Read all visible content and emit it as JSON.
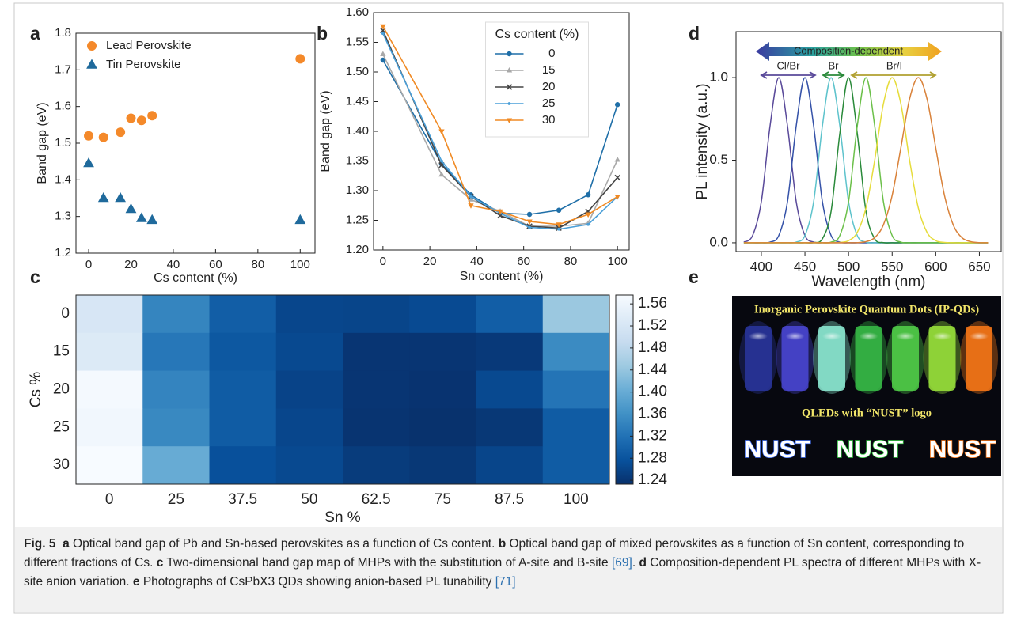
{
  "chart_data": [
    {
      "type": "scatter",
      "panel": "a",
      "xlabel": "Cs content (%)",
      "ylabel": "Band gap (eV)",
      "x": [
        0,
        7,
        15,
        20,
        25,
        30,
        100
      ],
      "series": [
        {
          "name": "Lead Perovskite",
          "color": "#f4892a",
          "marker": "circle",
          "values": [
            1.52,
            1.516,
            1.53,
            1.568,
            1.562,
            1.575,
            1.73
          ]
        },
        {
          "name": "Tin Perovskite",
          "color": "#1f6a9c",
          "marker": "triangle",
          "values": [
            1.445,
            1.35,
            1.35,
            1.32,
            1.295,
            1.29,
            1.29
          ]
        }
      ],
      "xlim": [
        -6,
        107
      ],
      "ylim": [
        1.2,
        1.8
      ],
      "xticks": [
        0,
        20,
        40,
        60,
        80,
        100
      ],
      "yticks": [
        1.2,
        1.3,
        1.4,
        1.5,
        1.6,
        1.7,
        1.8
      ],
      "legend": "upper left"
    },
    {
      "type": "line",
      "panel": "b",
      "xlabel": "Sn content (%)",
      "ylabel": "Band gap (eV)",
      "legend_title": "Cs content (%)",
      "x": [
        0,
        25,
        37.5,
        50,
        62.5,
        75,
        87.5,
        100
      ],
      "series": [
        {
          "name": "0",
          "color": "#1f6fa8",
          "marker": "circle",
          "values": [
            1.52,
            1.345,
            1.293,
            1.262,
            1.26,
            1.267,
            1.293,
            1.445
          ]
        },
        {
          "name": "15",
          "color": "#a9a9a9",
          "marker": "triangle",
          "values": [
            1.53,
            1.327,
            1.285,
            1.265,
            1.24,
            1.24,
            1.245,
            1.352
          ]
        },
        {
          "name": "20",
          "color": "#444444",
          "marker": "x",
          "values": [
            1.57,
            1.343,
            1.29,
            1.258,
            1.24,
            1.237,
            1.265,
            1.322
          ]
        },
        {
          "name": "25",
          "color": "#4a9fd8",
          "marker": "dot",
          "values": [
            1.565,
            1.35,
            1.29,
            1.262,
            1.238,
            1.235,
            1.243,
            1.29
          ]
        },
        {
          "name": "30",
          "color": "#f08a24",
          "marker": "triangle-down",
          "values": [
            1.577,
            1.4,
            1.275,
            1.265,
            1.248,
            1.243,
            1.26,
            1.29
          ]
        }
      ],
      "xlim": [
        -4,
        105
      ],
      "ylim": [
        1.2,
        1.6
      ],
      "xticks": [
        0,
        20,
        40,
        60,
        80,
        100
      ],
      "yticks": [
        {
          "value": 1.2,
          "label": "1.20"
        },
        1.25,
        {
          "value": 1.3,
          "label": "1.30"
        },
        1.35,
        {
          "value": 1.4,
          "label": "1.40"
        },
        1.45,
        {
          "value": 1.5,
          "label": "1.50"
        },
        1.55,
        {
          "value": 1.6,
          "label": "1.60"
        }
      ],
      "legend": "upper center"
    },
    {
      "type": "heatmap",
      "panel": "c",
      "xlabel": "Sn %",
      "ylabel": "Cs %",
      "x_categories": [
        "0",
        "25",
        "37.5",
        "50",
        "62.5",
        "75",
        "87.5",
        "100"
      ],
      "y_categories": [
        "0",
        "15",
        "20",
        "25",
        "30"
      ],
      "values": [
        [
          1.52,
          1.345,
          1.293,
          1.262,
          1.26,
          1.267,
          1.293,
          1.445
        ],
        [
          1.53,
          1.327,
          1.285,
          1.265,
          1.24,
          1.24,
          1.245,
          1.352
        ],
        [
          1.57,
          1.343,
          1.29,
          1.258,
          1.24,
          1.237,
          1.265,
          1.322
        ],
        [
          1.565,
          1.35,
          1.29,
          1.262,
          1.238,
          1.235,
          1.243,
          1.29
        ],
        [
          1.577,
          1.4,
          1.275,
          1.265,
          1.248,
          1.243,
          1.26,
          1.29
        ]
      ],
      "clim": [
        1.233,
        1.576
      ],
      "cticks": [
        1.24,
        1.28,
        1.32,
        1.36,
        {
          "value": 1.4,
          "label": "1.40"
        },
        1.44,
        1.48,
        1.52,
        1.56
      ],
      "colormap": [
        "#08306b",
        "#08519c",
        "#2171b5",
        "#4292c6",
        "#6baed6",
        "#9ecae1",
        "#c6dbef",
        "#deebf7",
        "#f7fbff"
      ]
    },
    {
      "type": "line",
      "panel": "d",
      "xlabel": "Wavelength (nm)",
      "ylabel": "PL intensity (a.u.)",
      "annotations": [
        "Composition-dependent",
        "Cl/Br",
        "Br",
        "Br/I"
      ],
      "x": [
        380,
        390,
        400,
        410,
        420,
        430,
        440,
        450,
        460,
        470,
        480,
        490,
        500,
        510,
        520,
        530,
        540,
        550,
        560,
        570,
        580,
        590,
        600,
        610,
        620,
        630,
        640,
        650,
        660
      ],
      "series": [
        {
          "color": "#5a4a9a",
          "values": [
            0.004,
            0.044,
            0.249,
            0.707,
            1,
            0.707,
            0.249,
            0.044,
            0.004,
            0,
            0,
            0,
            0,
            0,
            0,
            0,
            0,
            0,
            0,
            0,
            0,
            0,
            0,
            0,
            0,
            0,
            0,
            0,
            0
          ]
        },
        {
          "color": "#3552a8",
          "values": [
            0,
            0,
            0,
            0.004,
            0.044,
            0.249,
            0.707,
            1,
            0.707,
            0.249,
            0.044,
            0.004,
            0,
            0,
            0,
            0,
            0,
            0,
            0,
            0,
            0,
            0,
            0,
            0,
            0,
            0,
            0,
            0,
            0
          ]
        },
        {
          "color": "#5ec3cc",
          "values": [
            0,
            0,
            0,
            0,
            0,
            0,
            0.004,
            0.044,
            0.249,
            0.707,
            1,
            0.707,
            0.249,
            0.044,
            0.004,
            0,
            0,
            0,
            0,
            0,
            0,
            0,
            0,
            0,
            0,
            0,
            0,
            0,
            0
          ]
        },
        {
          "color": "#2a8a3a",
          "values": [
            0,
            0,
            0,
            0,
            0,
            0,
            0,
            0,
            0.001,
            0.024,
            0.191,
            0.662,
            1,
            0.662,
            0.191,
            0.024,
            0.001,
            0,
            0,
            0,
            0,
            0,
            0,
            0,
            0,
            0,
            0,
            0,
            0
          ]
        },
        {
          "color": "#6cc04a",
          "values": [
            0,
            0,
            0,
            0,
            0,
            0,
            0,
            0,
            0,
            0,
            0.004,
            0.044,
            0.249,
            0.707,
            1,
            0.707,
            0.249,
            0.044,
            0.004,
            0,
            0,
            0,
            0,
            0,
            0,
            0,
            0,
            0,
            0
          ]
        },
        {
          "color": "#e6dc3c",
          "values": [
            0,
            0,
            0,
            0,
            0,
            0,
            0,
            0,
            0,
            0,
            0,
            0.002,
            0.013,
            0.063,
            0.211,
            0.5,
            0.841,
            1,
            0.841,
            0.5,
            0.211,
            0.063,
            0.013,
            0.002,
            0,
            0,
            0,
            0,
            0
          ]
        },
        {
          "color": "#d9823a",
          "values": [
            0,
            0,
            0,
            0,
            0,
            0,
            0,
            0,
            0,
            0,
            0,
            0,
            0,
            0.001,
            0.007,
            0.031,
            0.109,
            0.287,
            0.575,
            0.871,
            1,
            0.871,
            0.575,
            0.287,
            0.109,
            0.031,
            0.007,
            0.001,
            0
          ]
        }
      ],
      "xlim": [
        371,
        675
      ],
      "ylim": [
        -0.053,
        1.278
      ],
      "xticks": [
        400,
        450,
        500,
        550,
        600,
        650
      ],
      "yticks": [
        {
          "value": 0,
          "label": "0.0"
        },
        0.5,
        {
          "value": 1,
          "label": "1.0"
        }
      ]
    }
  ],
  "photo": {
    "panel": "e",
    "title": "Inorganic Perovskite Quantum Dots (IP-QDs)",
    "subtitle": "QLEDs with “NUST” logo",
    "logos": [
      "NUST",
      "NUST",
      "NUST"
    ]
  },
  "caption": {
    "label": "Fig. 5",
    "parts": [
      {
        "key": "a",
        "text": "Optical band gap of Pb and Sn-based perovskites as a function of Cs content."
      },
      {
        "key": "b",
        "text": "Optical band gap of mixed perovskites as a function of Sn content, corresponding to different fractions of Cs."
      },
      {
        "key": "c",
        "text": "Two-dimensional band gap map of MHPs with the substitution of A-site and B-site",
        "ref": "[69]",
        "end": "."
      },
      {
        "key": "d",
        "text": "Composition-dependent PL spectra of different MHPs with X-site anion variation."
      },
      {
        "key": "e",
        "text": "Photographs of CsPbX3 QDs showing anion-based PL tunability",
        "ref": "[71]"
      }
    ]
  }
}
